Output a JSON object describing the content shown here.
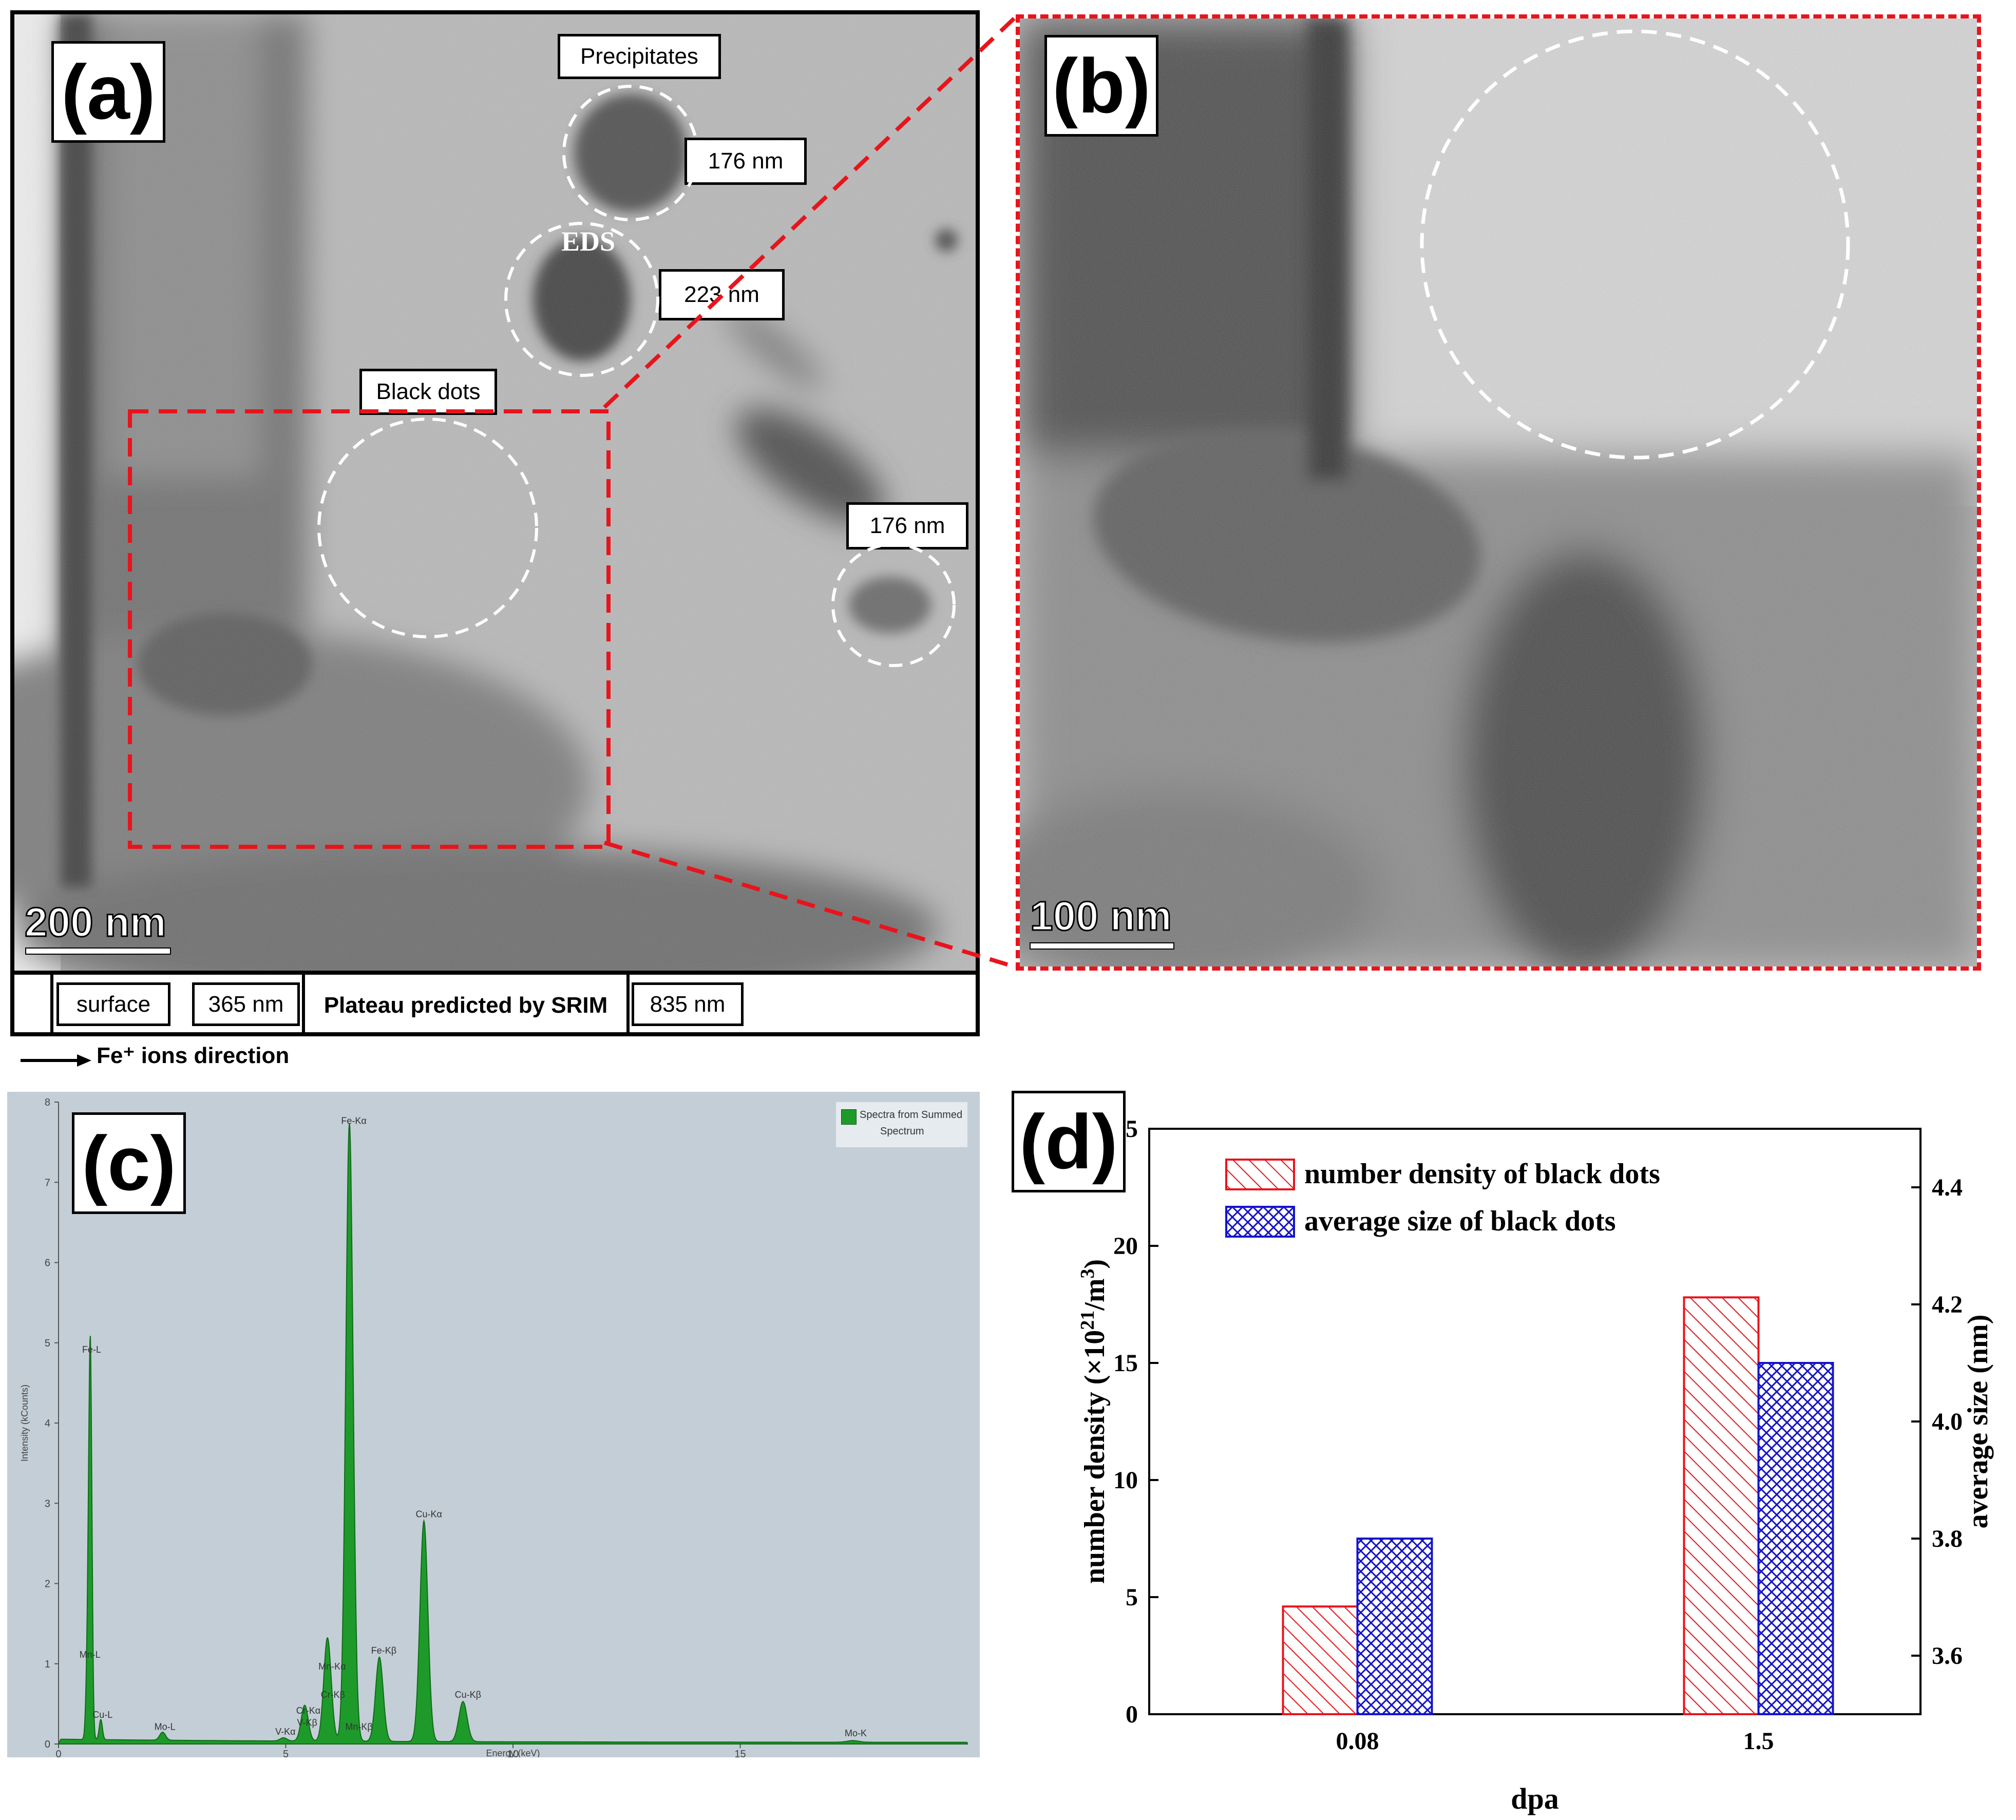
{
  "panel_a": {
    "letter": "(a)",
    "scale_bar": "200 nm",
    "labels": {
      "precipitates": "Precipitates",
      "size1": "176 nm",
      "eds": "EDS",
      "size2": "223 nm",
      "black_dots": "Black dots",
      "size3": "176 nm"
    },
    "depth_bar": {
      "surface": "surface",
      "d1": "365 nm",
      "plateau": "Plateau predicted by SRIM",
      "d2": "835 nm"
    },
    "direction": "Fe⁺ ions direction"
  },
  "panel_b": {
    "letter": "(b)",
    "scale_bar": "100 nm"
  },
  "panel_c": {
    "letter": "(c)",
    "legend": [
      "Spectra from Summed",
      "Spectrum"
    ],
    "xlabel": "Energy (keV)",
    "ylabel": "Intensity (kCounts)",
    "colors": {
      "spectrum": "#1e9a2a",
      "background": "#c4ced6"
    },
    "chart_data": {
      "type": "line",
      "xlim": [
        0,
        20
      ],
      "ylim": [
        0,
        8
      ],
      "x_ticks": [
        0,
        5,
        10,
        15
      ],
      "y_ticks": [
        0,
        1,
        2,
        3,
        4,
        5,
        6,
        7,
        8
      ],
      "peaks": [
        {
          "label": "Fe-L",
          "energy": 0.7,
          "intensity": 4.8
        },
        {
          "label": "Mn-L",
          "energy": 0.64,
          "intensity": 1.0
        },
        {
          "label": "Cu-L",
          "energy": 0.93,
          "intensity": 0.25
        },
        {
          "label": "Mo-L",
          "energy": 2.29,
          "intensity": 0.1
        },
        {
          "label": "V-Kα",
          "energy": 4.95,
          "intensity": 0.04
        },
        {
          "label": "Cr-Kα",
          "energy": 5.41,
          "intensity": 0.3
        },
        {
          "label": "V-Kβ",
          "energy": 5.43,
          "intensity": 0.15
        },
        {
          "label": "Mn-Kα",
          "energy": 5.9,
          "intensity": 0.85
        },
        {
          "label": "Cr-Kβ",
          "energy": 5.95,
          "intensity": 0.5
        },
        {
          "label": "Fe-Kα",
          "energy": 6.4,
          "intensity": 7.65
        },
        {
          "label": "Mn-Kβ",
          "energy": 6.49,
          "intensity": 0.1
        },
        {
          "label": "Fe-Kβ",
          "energy": 7.06,
          "intensity": 1.05
        },
        {
          "label": "Cu-Kα",
          "energy": 8.04,
          "intensity": 2.75
        },
        {
          "label": "Cu-Kβ",
          "energy": 8.9,
          "intensity": 0.5
        },
        {
          "label": "Mo-K",
          "energy": 17.48,
          "intensity": 0.02
        }
      ]
    }
  },
  "panel_d": {
    "letter": "(d)",
    "legend": [
      "number density of black dots",
      "average size of black dots"
    ],
    "xlabel": "dpa",
    "ylabel_left": "number density (×10",
    "ylabel_left_sup": "21",
    "ylabel_left_mid": "/m",
    "ylabel_left_sup2": "3",
    "ylabel_left_end": ")",
    "ylabel_right": "average size (nm)",
    "colors": {
      "density": "#e8141c",
      "size": "#1414c8"
    },
    "chart_data": {
      "type": "bar",
      "categories": [
        "0.08",
        "1.5"
      ],
      "series": [
        {
          "name": "number density of black dots",
          "axis": "left",
          "values": [
            4.6,
            17.8
          ]
        },
        {
          "name": "average size of black dots",
          "axis": "right",
          "values": [
            3.8,
            4.1
          ]
        }
      ],
      "ylim_left": [
        0,
        25
      ],
      "ylim_right": [
        3.5,
        4.5
      ],
      "y_ticks_left": [
        0,
        5,
        10,
        15,
        20,
        25
      ],
      "y_ticks_right": [
        3.6,
        3.8,
        4.0,
        4.2,
        4.4
      ]
    }
  }
}
